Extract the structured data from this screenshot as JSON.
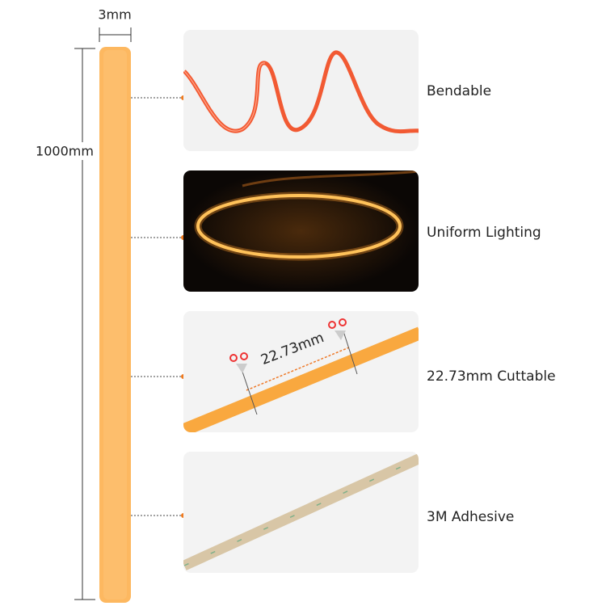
{
  "dimensions": {
    "width": "3mm",
    "length": "1000mm"
  },
  "features": [
    {
      "label": "Bendable"
    },
    {
      "label": "Uniform Lighting"
    },
    {
      "label": "22.73mm Cuttable",
      "annotation": "22.73mm"
    },
    {
      "label": "3M Adhesive"
    }
  ]
}
